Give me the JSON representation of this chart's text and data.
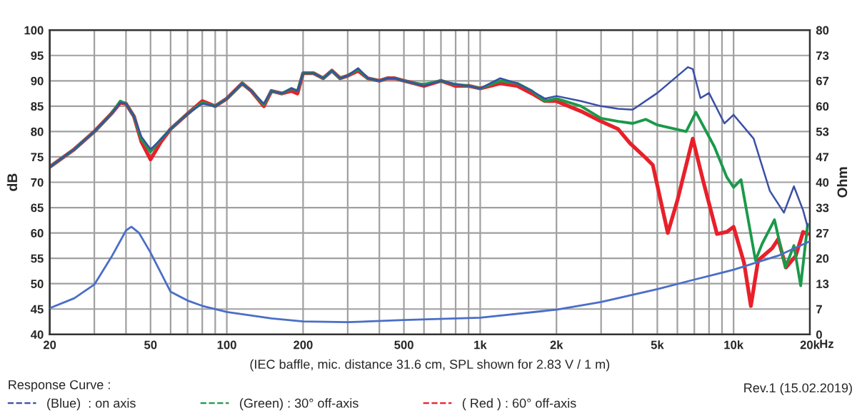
{
  "chart_data": {
    "type": "line",
    "ylabel": "dB",
    "y2label": "Ohm",
    "xlabel": "(IEC baffle, mic. distance 31.6 cm, SPL shown for 2.83 V / 1 m)",
    "legend_title": "Response Curve :",
    "legend": "bottom",
    "grid": true,
    "log": "x",
    "xlim": [
      20,
      20000
    ],
    "xticks": [
      20,
      {
        "value": 30,
        "label": null
      },
      {
        "value": 40,
        "label": null
      },
      50,
      {
        "value": 60,
        "label": null
      },
      {
        "value": 70,
        "label": null
      },
      {
        "value": 80,
        "label": null
      },
      {
        "value": 90,
        "label": null
      },
      100,
      200,
      {
        "value": 300,
        "label": null
      },
      {
        "value": 400,
        "label": null
      },
      500,
      {
        "value": 600,
        "label": null
      },
      {
        "value": 700,
        "label": null
      },
      {
        "value": 800,
        "label": null
      },
      {
        "value": 900,
        "label": null
      },
      {
        "value": 1000,
        "label": "1k"
      },
      {
        "value": 2000,
        "label": "2k"
      },
      {
        "value": 3000,
        "label": null
      },
      {
        "value": 4000,
        "label": null
      },
      {
        "value": 5000,
        "label": "5k"
      },
      {
        "value": 6000,
        "label": null
      },
      {
        "value": 7000,
        "label": null
      },
      {
        "value": 8000,
        "label": null
      },
      {
        "value": 9000,
        "label": null
      },
      {
        "value": 10000,
        "label": "10k"
      },
      {
        "value": 20000,
        "label": "20k"
      }
    ],
    "ylim": [
      40,
      100
    ],
    "yticks": [
      40,
      45,
      50,
      55,
      60,
      65,
      70,
      75,
      80,
      85,
      90,
      95,
      100
    ],
    "y2lim": [
      0,
      80
    ],
    "y2ticks": [
      0,
      {
        "value": 6.667,
        "label": "7"
      },
      {
        "value": 13.333,
        "label": "13"
      },
      20,
      {
        "value": 26.667,
        "label": "27"
      },
      {
        "value": 33.333,
        "label": "33"
      },
      40,
      {
        "value": 46.667,
        "label": "47"
      },
      {
        "value": 53.333,
        "label": "53"
      },
      60,
      {
        "value": 66.667,
        "label": "67"
      },
      {
        "value": 73.333,
        "label": "73"
      },
      80
    ],
    "annotations": [
      "Rev.1 (15.02.2019)",
      "Hz"
    ],
    "series": [
      {
        "name": "(Blue)  : on axis",
        "color": "#3a4fa8",
        "x": [
          20,
          25,
          30,
          35,
          38,
          40,
          43,
          46,
          50,
          55,
          60,
          70,
          80,
          90,
          100,
          115,
          125,
          140,
          150,
          165,
          180,
          190,
          200,
          220,
          240,
          260,
          280,
          300,
          330,
          360,
          400,
          430,
          460,
          500,
          550,
          600,
          700,
          800,
          900,
          1000,
          1200,
          1400,
          1600,
          1800,
          2000,
          2500,
          3000,
          3500,
          4000,
          5000,
          6600,
          6900,
          7400,
          8000,
          9200,
          10000,
          12000,
          13900,
          15800,
          17300,
          18800,
          19600
        ],
        "values": [
          73,
          76.5,
          80,
          83.5,
          85.7,
          85.5,
          83,
          79,
          76.5,
          78.5,
          80.5,
          83.5,
          85.5,
          85,
          86.5,
          89.5,
          88,
          85.5,
          88,
          87.5,
          88.5,
          88,
          91.5,
          91.5,
          90.5,
          92,
          90.5,
          91,
          92.5,
          90.5,
          90,
          90.5,
          90.5,
          90,
          89.5,
          89,
          90,
          89.3,
          89,
          88.5,
          90.5,
          89.5,
          88,
          86.5,
          87,
          86,
          85,
          84.5,
          84.3,
          87.6,
          92.7,
          92.3,
          86.6,
          87.6,
          81.6,
          83.3,
          78.6,
          68.3,
          64,
          69.2,
          64.5,
          61.2
        ]
      },
      {
        "name": "(Green) : 30° off-axis",
        "color": "#1a9a4a",
        "x": [
          20,
          25,
          30,
          35,
          38,
          40,
          43,
          46,
          50,
          55,
          60,
          70,
          80,
          90,
          100,
          115,
          125,
          140,
          150,
          165,
          180,
          190,
          200,
          220,
          240,
          260,
          280,
          300,
          330,
          360,
          400,
          430,
          460,
          500,
          550,
          600,
          700,
          800,
          900,
          1000,
          1200,
          1400,
          1600,
          1800,
          2000,
          2500,
          3000,
          3500,
          4000,
          4500,
          5000,
          6500,
          7100,
          8400,
          9400,
          10000,
          10700,
          12200,
          13000,
          14500,
          16000,
          17300,
          18400,
          19600
        ],
        "values": [
          73,
          76.5,
          80,
          83.5,
          86,
          85.5,
          83,
          78.5,
          76,
          78.5,
          80.5,
          83.5,
          85.7,
          85,
          86.5,
          89.5,
          88,
          85.3,
          88,
          87.5,
          88.5,
          88,
          91.5,
          91.5,
          90.5,
          92,
          90.5,
          91,
          92.3,
          90.5,
          90,
          90.5,
          90.5,
          90,
          89.5,
          89.3,
          90,
          89.3,
          89,
          88.5,
          90,
          89.5,
          88,
          86,
          86.5,
          85,
          82.6,
          82,
          81.6,
          82.4,
          81.3,
          80,
          83.8,
          77,
          71,
          69,
          70.5,
          54.6,
          58,
          62.6,
          53.2,
          57.5,
          49.6,
          61.7
        ]
      },
      {
        "name": "( Red ) : 60° off-axis",
        "color": "#e8202a",
        "x": [
          20,
          25,
          30,
          35,
          38,
          40,
          43,
          46,
          50,
          55,
          60,
          70,
          80,
          90,
          100,
          115,
          125,
          140,
          150,
          165,
          180,
          190,
          200,
          220,
          240,
          260,
          280,
          300,
          330,
          360,
          400,
          430,
          460,
          500,
          550,
          600,
          700,
          800,
          900,
          1000,
          1200,
          1400,
          1600,
          1800,
          2000,
          2500,
          3000,
          3500,
          3900,
          4500,
          4800,
          5500,
          6000,
          6900,
          7600,
          8600,
          9400,
          10000,
          11000,
          11700,
          12500,
          14200,
          15000,
          16100,
          17600,
          18800,
          19600
        ],
        "values": [
          73,
          76.5,
          80,
          83.5,
          85.7,
          85.5,
          83,
          78,
          74.5,
          78,
          80.5,
          83.5,
          86,
          85,
          86.5,
          89.5,
          88,
          85,
          88,
          87.5,
          88,
          87.5,
          91.5,
          91.5,
          90.5,
          92,
          90.5,
          91,
          92,
          90.5,
          90,
          90.5,
          90.5,
          90,
          89.5,
          89,
          90,
          89,
          89,
          88.5,
          89.5,
          89,
          87.5,
          86,
          86,
          84,
          82,
          80.5,
          77.7,
          74.8,
          73.4,
          60,
          66.4,
          78.6,
          70.1,
          59.8,
          60.2,
          61.2,
          54.1,
          45.6,
          54.6,
          57,
          58.8,
          53.2,
          55.5,
          60.2,
          59.8
        ]
      },
      {
        "axis": "y2",
        "color": "#4a6ec8",
        "x": [
          20,
          25,
          30,
          35,
          40,
          42,
          45,
          50,
          60,
          70,
          80,
          100,
          150,
          200,
          300,
          500,
          1000,
          2000,
          3000,
          5000,
          7000,
          10000,
          15000,
          20000
        ],
        "values": [
          6.9,
          9.5,
          13.1,
          20.3,
          27.3,
          28.3,
          26.7,
          21.5,
          11.2,
          8.9,
          7.5,
          5.9,
          4.2,
          3.4,
          3.2,
          3.8,
          4.4,
          6.5,
          8.5,
          11.9,
          14.4,
          17,
          20.7,
          24.5
        ]
      }
    ]
  }
}
